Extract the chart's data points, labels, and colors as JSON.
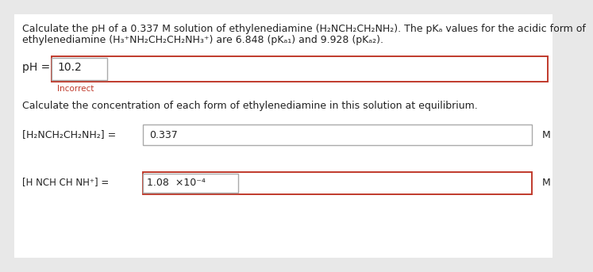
{
  "title_line1": "Calculate the pH of a 0.337 M solution of ethylenediamine (H₂NCH₂CH₂NH₂). The pKₐ values for the acidic form of",
  "title_line2": "ethylenediamine (H₃⁺NH₂CH₂CH₂NH₃⁺) are 6.848 (pKₐ₁) and 9.928 (pKₐ₂).",
  "ph_label": "pH = ",
  "ph_value": "10.2",
  "incorrect_text": "Incorrect",
  "eq_text": "Calculate the concentration of each form of ethylenediamine in this solution at equilibrium.",
  "conc1_label": "[H₂NCH₂CH₂NH₂] = ",
  "conc1_value": "0.337",
  "conc1_unit": "M",
  "conc2_label": "[H NCH CH NH⁺] = ",
  "conc2_value": "1.08  ×10⁻⁴",
  "conc2_unit": "M",
  "bg_color": "#e8e8e8",
  "white": "#ffffff",
  "box_border_red": "#c0392b",
  "box_border_gray": "#aaaaaa",
  "text_color": "#222222",
  "incorrect_color": "#c0392b",
  "fs_main": 9.0,
  "fs_small": 7.5
}
